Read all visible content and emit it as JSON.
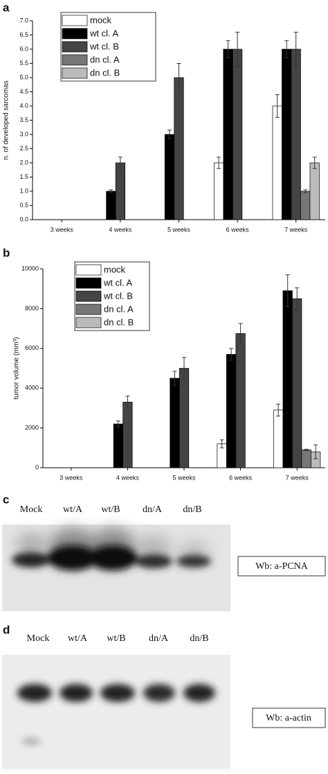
{
  "chart_data": [
    {
      "type": "bar",
      "panel": "a",
      "y_label": "n. of developed sarcomas",
      "categories": [
        "3 weeks",
        "4 weeks",
        "5 weeks",
        "6 weeks",
        "7 weeks"
      ],
      "series": [
        {
          "name": "mock",
          "color": "#ffffff",
          "values": [
            0,
            0,
            0,
            2,
            4
          ],
          "errors": [
            null,
            null,
            null,
            0.2,
            0.4
          ]
        },
        {
          "name": "wt cl. A",
          "color": "#000000",
          "values": [
            0,
            1,
            3,
            6,
            6
          ],
          "errors": [
            null,
            0.05,
            0.15,
            0.3,
            0.3
          ]
        },
        {
          "name": "wt cl. B",
          "color": "#444444",
          "values": [
            0,
            2,
            5,
            6,
            6
          ],
          "errors": [
            null,
            0.2,
            0.5,
            0.6,
            0.6
          ]
        },
        {
          "name": "dn cl. A",
          "color": "#777777",
          "values": [
            0,
            0,
            0,
            0,
            1
          ],
          "errors": [
            null,
            null,
            null,
            null,
            0.05
          ]
        },
        {
          "name": "dn cl. B",
          "color": "#bbbbbb",
          "values": [
            0,
            0,
            0,
            0,
            2
          ],
          "errors": [
            null,
            null,
            null,
            null,
            0.2
          ]
        }
      ],
      "ylim": [
        0,
        7
      ],
      "yticks": [
        {
          "value": 0,
          "label": "0.0"
        },
        0.5,
        {
          "value": 1,
          "label": "1.0"
        },
        1.5,
        {
          "value": 2,
          "label": "2.0"
        },
        2.5,
        {
          "value": 3,
          "label": "3.0"
        },
        3.5,
        {
          "value": 4,
          "label": "4.0"
        },
        4.5,
        {
          "value": 5,
          "label": "5.0"
        },
        5.5,
        {
          "value": 6,
          "label": "6.0"
        },
        6.5,
        {
          "value": 7,
          "label": "7.0"
        }
      ],
      "grid": false
    },
    {
      "type": "bar",
      "panel": "b",
      "y_label": "tumor volume (mm³)",
      "categories": [
        "3 weeks",
        "4 weeks",
        "5 weeks",
        "6 weeks",
        "7 weeks"
      ],
      "series": [
        {
          "name": "mock",
          "color": "#ffffff",
          "values": [
            0,
            0,
            0,
            1200,
            2900
          ],
          "errors": [
            null,
            null,
            null,
            200,
            300
          ]
        },
        {
          "name": "wt cl. A",
          "color": "#000000",
          "values": [
            0,
            2200,
            4500,
            5700,
            8900
          ],
          "errors": [
            null,
            150,
            350,
            300,
            800
          ]
        },
        {
          "name": "wt cl. B",
          "color": "#444444",
          "values": [
            0,
            3300,
            5000,
            6750,
            8500
          ],
          "errors": [
            null,
            300,
            550,
            500,
            550
          ]
        },
        {
          "name": "dn cl. A",
          "color": "#777777",
          "values": [
            0,
            0,
            0,
            0,
            900
          ],
          "errors": [
            null,
            null,
            null,
            null,
            30
          ]
        },
        {
          "name": "dn cl. B",
          "color": "#bbbbbb",
          "values": [
            0,
            0,
            0,
            0,
            800
          ],
          "errors": [
            null,
            null,
            null,
            null,
            350
          ]
        }
      ],
      "ylim": [
        0,
        10000
      ],
      "yticks": [
        0,
        2000,
        4000,
        6000,
        8000,
        10000
      ],
      "grid": false
    }
  ],
  "blots": [
    {
      "panel": "c",
      "lanes": [
        "Mock",
        "wt/A",
        "wt/B",
        "dn/A",
        "dn/B"
      ],
      "label": "Wb: a-PCNA"
    },
    {
      "panel": "d",
      "lanes": [
        "Mock",
        "wt/A",
        "wt/B",
        "dn/A",
        "dn/B"
      ],
      "label": "Wb: a-actin"
    }
  ]
}
